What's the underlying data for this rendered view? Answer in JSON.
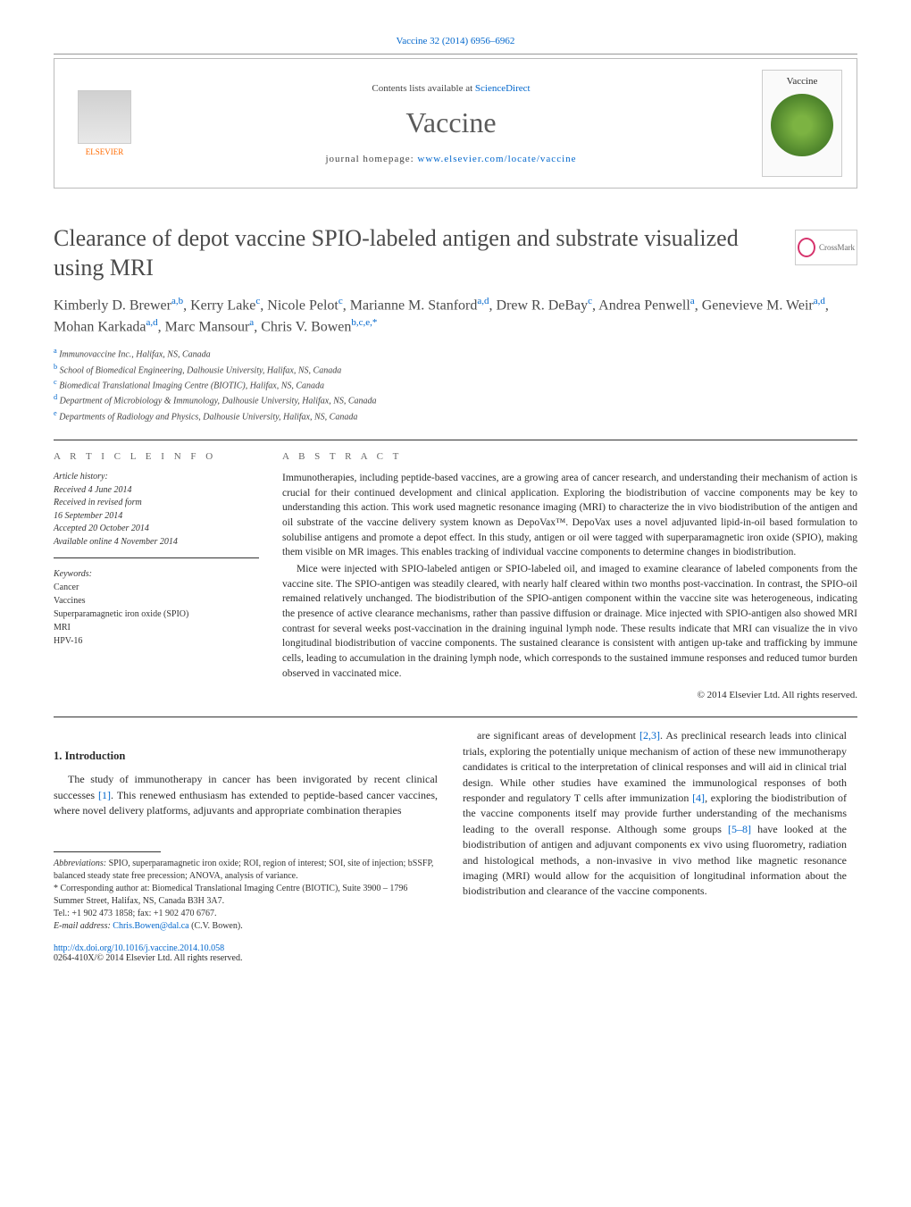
{
  "header": {
    "citation": "Vaccine 32 (2014) 6956–6962",
    "contents_prefix": "Contents lists available at ",
    "contents_link": "ScienceDirect",
    "journal": "Vaccine",
    "homepage_prefix": "journal homepage: ",
    "homepage_url": "www.elsevier.com/locate/vaccine",
    "publisher_logo_text": "ELSEVIER",
    "cover_label": "Vaccine",
    "crossmark": "CrossMark"
  },
  "title": "Clearance of depot vaccine SPIO-labeled antigen and substrate visualized using MRI",
  "authors_html": "Kimberly D. Brewer<sup>a,b</sup>, Kerry Lake<sup>c</sup>, Nicole Pelot<sup>c</sup>, Marianne M. Stanford<sup>a,d</sup>, Drew R. DeBay<sup>c</sup>, Andrea Penwell<sup>a</sup>, Genevieve M. Weir<sup>a,d</sup>, Mohan Karkada<sup>a,d</sup>, Marc Mansour<sup>a</sup>, Chris V. Bowen<sup>b,c,e,*</sup>",
  "affiliations": [
    {
      "sup": "a",
      "text": "Immunovaccine Inc., Halifax, NS, Canada"
    },
    {
      "sup": "b",
      "text": "School of Biomedical Engineering, Dalhousie University, Halifax, NS, Canada"
    },
    {
      "sup": "c",
      "text": "Biomedical Translational Imaging Centre (BIOTIC), Halifax, NS, Canada"
    },
    {
      "sup": "d",
      "text": "Department of Microbiology & Immunology, Dalhousie University, Halifax, NS, Canada"
    },
    {
      "sup": "e",
      "text": "Departments of Radiology and Physics, Dalhousie University, Halifax, NS, Canada"
    }
  ],
  "article_info": {
    "heading": "a r t i c l e   i n f o",
    "history_label": "Article history:",
    "received": "Received 4 June 2014",
    "revised1": "Received in revised form",
    "revised2": "16 September 2014",
    "accepted": "Accepted 20 October 2014",
    "online": "Available online 4 November 2014",
    "keywords_label": "Keywords:",
    "keywords": [
      "Cancer",
      "Vaccines",
      "Superparamagnetic iron oxide (SPIO)",
      "MRI",
      "HPV-16"
    ]
  },
  "abstract": {
    "heading": "a b s t r a c t",
    "p1": "Immunotherapies, including peptide-based vaccines, are a growing area of cancer research, and understanding their mechanism of action is crucial for their continued development and clinical application. Exploring the biodistribution of vaccine components may be key to understanding this action. This work used magnetic resonance imaging (MRI) to characterize the in vivo biodistribution of the antigen and oil substrate of the vaccine delivery system known as DepoVax™. DepoVax uses a novel adjuvanted lipid-in-oil based formulation to solubilise antigens and promote a depot effect. In this study, antigen or oil were tagged with superparamagnetic iron oxide (SPIO), making them visible on MR images. This enables tracking of individual vaccine components to determine changes in biodistribution.",
    "p2": "Mice were injected with SPIO-labeled antigen or SPIO-labeled oil, and imaged to examine clearance of labeled components from the vaccine site. The SPIO-antigen was steadily cleared, with nearly half cleared within two months post-vaccination. In contrast, the SPIO-oil remained relatively unchanged. The biodistribution of the SPIO-antigen component within the vaccine site was heterogeneous, indicating the presence of active clearance mechanisms, rather than passive diffusion or drainage. Mice injected with SPIO-antigen also showed MRI contrast for several weeks post-vaccination in the draining inguinal lymph node. These results indicate that MRI can visualize the in vivo longitudinal biodistribution of vaccine components. The sustained clearance is consistent with antigen up-take and trafficking by immune cells, leading to accumulation in the draining lymph node, which corresponds to the sustained immune responses and reduced tumor burden observed in vaccinated mice.",
    "copyright": "© 2014 Elsevier Ltd. All rights reserved."
  },
  "body": {
    "intro_heading": "1. Introduction",
    "left_p1": "The study of immunotherapy in cancer has been invigorated by recent clinical successes [1]. This renewed enthusiasm has extended to peptide-based cancer vaccines, where novel delivery platforms, adjuvants and appropriate combination therapies",
    "right_p1": "are significant areas of development [2,3]. As preclinical research leads into clinical trials, exploring the potentially unique mechanism of action of these new immunotherapy candidates is critical to the interpretation of clinical responses and will aid in clinical trial design. While other studies have examined the immunological responses of both responder and regulatory T cells after immunization [4], exploring the biodistribution of the vaccine components itself may provide further understanding of the mechanisms leading to the overall response. Although some groups [5–8] have looked at the biodistribution of antigen and adjuvant components ex vivo using fluorometry, radiation and histological methods, a non-invasive in vivo method like magnetic resonance imaging (MRI) would allow for the acquisition of longitudinal information about the biodistribution and clearance of the vaccine components."
  },
  "footnotes": {
    "abbrev_label": "Abbreviations:",
    "abbrev_text": " SPIO, superparamagnetic iron oxide; ROI, region of interest; SOI, site of injection; bSSFP, balanced steady state free precession; ANOVA, analysis of variance.",
    "corr_marker": "*",
    "corr_text": " Corresponding author at: Biomedical Translational Imaging Centre (BIOTIC), Suite 3900 – 1796 Summer Street, Halifax, NS, Canada B3H 3A7.",
    "tel": "Tel.: +1 902 473 1858; fax: +1 902 470 6767.",
    "email_label": "E-mail address: ",
    "email": "Chris.Bowen@dal.ca",
    "email_person": " (C.V. Bowen)."
  },
  "doi": {
    "url": "http://dx.doi.org/10.1016/j.vaccine.2014.10.058",
    "issn": "0264-410X/© 2014 Elsevier Ltd. All rights reserved."
  },
  "colors": {
    "link": "#0066cc",
    "text": "#2b2b2b",
    "heading_gray": "#666666",
    "elsevier_orange": "#ff6a00"
  }
}
